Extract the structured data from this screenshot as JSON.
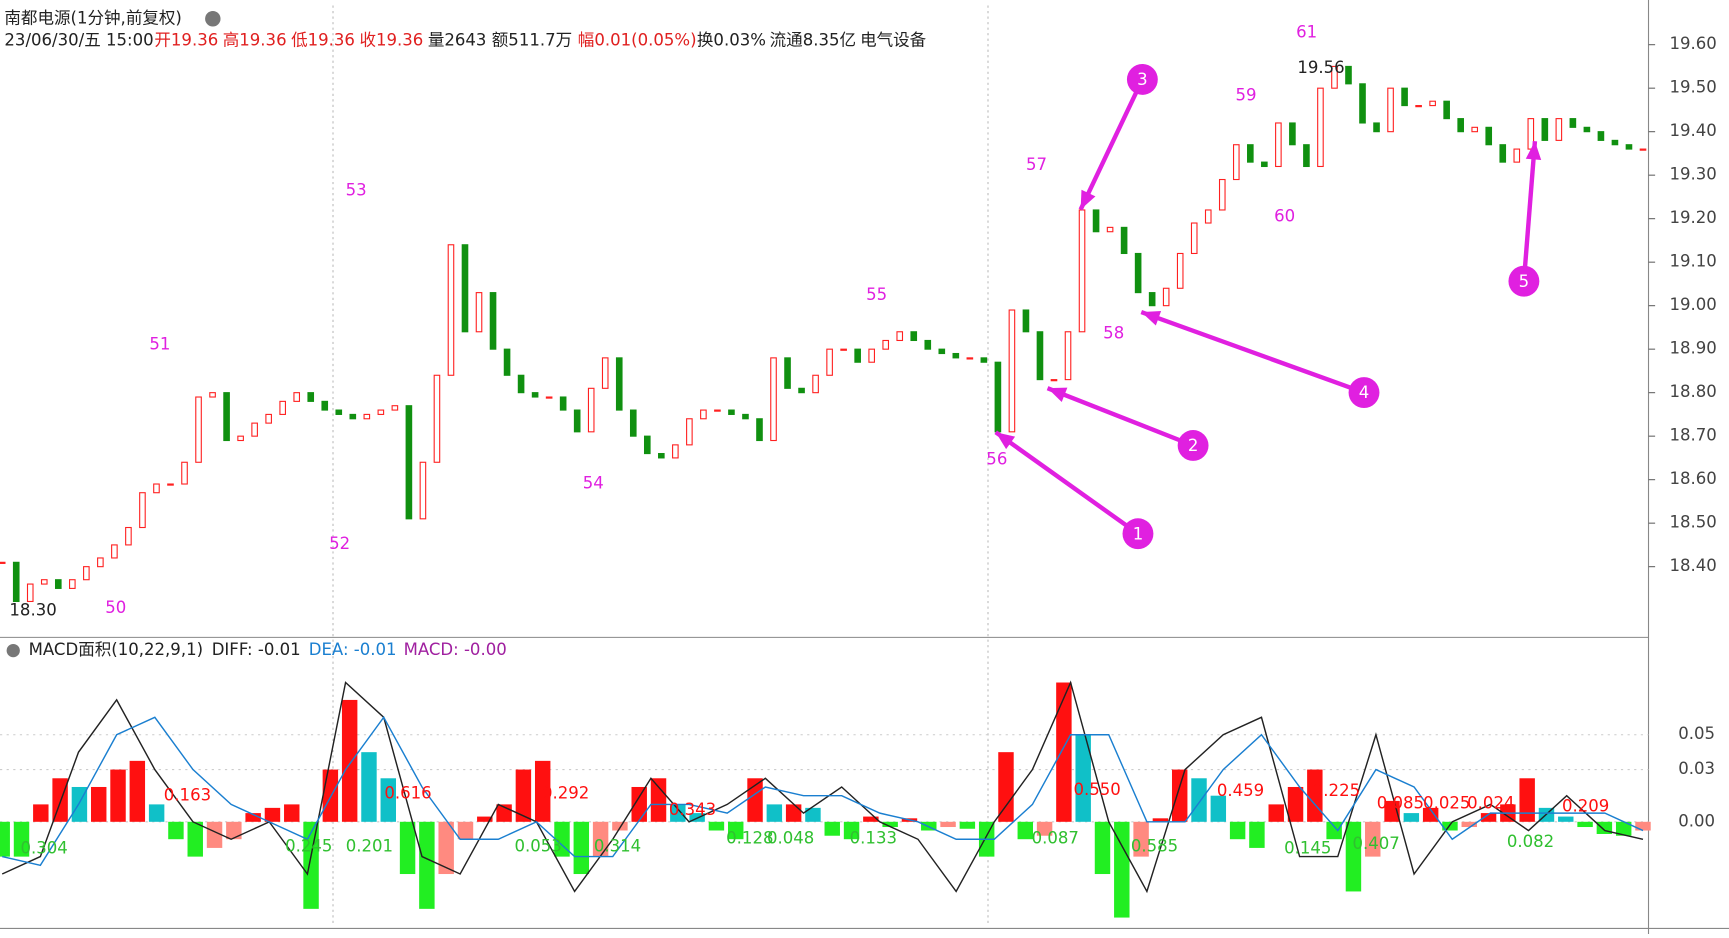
{
  "chart_data": [
    {
      "type": "candle",
      "title": "南都电源(1分钟,前复权)",
      "info": [
        "23/06/30/五 15:00",
        "开19.36",
        "高19.36",
        "低19.36",
        "收19.36",
        "量2643",
        "额511.7万",
        "幅0.01(0.05%)",
        "换0.03%",
        "流通8.35亿",
        "电气设备"
      ],
      "series": [
        {
          "name": "收",
          "up_color": "#ff2020",
          "down_color": "#109010",
          "values": [
            18.41,
            18.32,
            18.36,
            18.37,
            18.35,
            18.37,
            18.4,
            18.42,
            18.45,
            18.49,
            18.57,
            18.59,
            18.59,
            18.64,
            18.79,
            18.8,
            18.69,
            18.7,
            18.73,
            18.75,
            18.78,
            18.8,
            18.78,
            18.76,
            18.75,
            18.74,
            18.75,
            18.76,
            18.77,
            18.51,
            18.64,
            18.84,
            19.14,
            18.94,
            19.03,
            18.9,
            18.84,
            18.8,
            18.79,
            18.79,
            18.76,
            18.71,
            18.81,
            18.88,
            18.76,
            18.7,
            18.66,
            18.65,
            18.68,
            18.74,
            18.76,
            18.76,
            18.75,
            18.74,
            18.69,
            18.88,
            18.81,
            18.8,
            18.84,
            18.9,
            18.9,
            18.87,
            18.9,
            18.92,
            18.94,
            18.92,
            18.9,
            18.89,
            18.88,
            18.88,
            18.87,
            18.71,
            18.99,
            18.94,
            18.83,
            18.83,
            18.94,
            19.22,
            19.17,
            19.18,
            19.12,
            19.03,
            19.0,
            19.04,
            19.12,
            19.19,
            19.22,
            19.29,
            19.37,
            19.33,
            19.32,
            19.42,
            19.37,
            19.32,
            19.5,
            19.55,
            19.51,
            19.42,
            19.4,
            19.5,
            19.46,
            19.46,
            19.47,
            19.43,
            19.4,
            19.41,
            19.37,
            19.33,
            19.36,
            19.43,
            19.38,
            19.43,
            19.41,
            19.4,
            19.38,
            19.37,
            19.36,
            19.36
          ]
        }
      ],
      "ylim": [
        18.24,
        19.69
      ],
      "yticks": [
        {
          "value": 19.6,
          "label": "19.60"
        },
        {
          "value": 19.5,
          "label": "19.50"
        },
        {
          "value": 19.4,
          "label": "19.40"
        },
        {
          "value": 19.3,
          "label": "19.30"
        },
        {
          "value": 19.2,
          "label": "19.20"
        },
        {
          "value": 19.1,
          "label": "19.10"
        },
        {
          "value": 19.0,
          "label": "19.00"
        },
        {
          "value": 18.9,
          "label": "18.90"
        },
        {
          "value": 18.8,
          "label": "18.80"
        },
        {
          "value": 18.7,
          "label": "18.70"
        },
        {
          "value": 18.6,
          "label": "18.60"
        },
        {
          "value": 18.5,
          "label": "18.50"
        },
        {
          "value": 18.4,
          "label": "18.40"
        }
      ],
      "annotations": [
        "50",
        "51",
        "52",
        "53",
        "54",
        "55",
        "56",
        "57",
        "58",
        "59",
        "60",
        "61",
        "19.56",
        "18.30"
      ],
      "markers": [
        "1",
        "2",
        "3",
        "4",
        "5"
      ]
    },
    {
      "type": "macd",
      "title": "MACD面积(10,22,9,1)",
      "legend": [
        "DIFF: -0.01",
        "DEA: -0.01",
        "MACD: -0.00"
      ],
      "series": [
        {
          "name": "MACD",
          "values": [
            -0.02,
            -0.02,
            0.01,
            0.025,
            0.02,
            0.02,
            0.03,
            0.035,
            0.01,
            -0.01,
            -0.02,
            -0.015,
            -0.01,
            0.005,
            0.008,
            0.01,
            -0.05,
            0.03,
            0.07,
            0.04,
            0.025,
            -0.03,
            -0.05,
            -0.03,
            -0.01,
            0.003,
            0.01,
            0.03,
            0.035,
            -0.02,
            -0.03,
            -0.02,
            -0.005,
            0.02,
            0.025,
            0.01,
            0.005,
            -0.005,
            -0.01,
            0.025,
            0.01,
            0.01,
            0.008,
            -0.008,
            -0.01,
            0.003,
            -0.003,
            0.002,
            -0.005,
            -0.003,
            -0.004,
            -0.02,
            0.04,
            -0.01,
            -0.008,
            0.08,
            0.05,
            -0.03,
            -0.055,
            -0.02,
            0.002,
            0.03,
            0.025,
            0.015,
            -0.01,
            -0.015,
            0.01,
            0.02,
            0.03,
            -0.01,
            -0.04,
            -0.02,
            0.012,
            0.005,
            0.008,
            -0.005,
            -0.003,
            0.005,
            0.01,
            0.025,
            0.008,
            0.003,
            -0.003,
            -0.007,
            -0.008,
            -0.005
          ]
        },
        {
          "name": "DIFF",
          "color": "#222222",
          "values": [
            -0.03,
            -0.02,
            0.04,
            0.07,
            0.03,
            0.0,
            -0.01,
            0.0,
            -0.03,
            0.08,
            0.06,
            -0.02,
            -0.03,
            0.01,
            0.0,
            -0.04,
            -0.01,
            0.025,
            0.0,
            0.01,
            0.025,
            0.005,
            0.02,
            0.0,
            -0.01,
            -0.04,
            0.0,
            0.03,
            0.08,
            0.0,
            -0.04,
            0.03,
            0.05,
            0.06,
            -0.02,
            -0.02,
            0.05,
            -0.03,
            0.0,
            0.01,
            -0.005,
            0.015,
            -0.005,
            -0.01
          ]
        },
        {
          "name": "DEA",
          "color": "#1a7fd0",
          "values": [
            -0.02,
            -0.025,
            0.01,
            0.05,
            0.06,
            0.03,
            0.01,
            0.0,
            -0.01,
            0.03,
            0.06,
            0.02,
            -0.01,
            -0.01,
            0.0,
            -0.02,
            -0.02,
            0.01,
            0.01,
            0.005,
            0.02,
            0.015,
            0.015,
            0.005,
            0.0,
            -0.01,
            -0.01,
            0.01,
            0.05,
            0.05,
            0.0,
            0.0,
            0.03,
            0.05,
            0.02,
            -0.005,
            0.03,
            0.02,
            -0.01,
            0.005,
            0.005,
            0.005,
            0.005,
            -0.005
          ]
        }
      ],
      "ylim": [
        -0.06,
        0.092
      ],
      "yticks": [
        {
          "value": 0.05,
          "label": "0.05"
        },
        {
          "value": 0.03,
          "label": "0.03"
        },
        {
          "value": 0,
          "label": "0.00"
        }
      ],
      "area_labels_up": [
        "0.163",
        "0.616",
        "0.292",
        "0.343",
        "0.550",
        "0.459",
        "0.225",
        "0.085",
        "0.025",
        "0.024",
        "0.209"
      ],
      "area_labels_down": [
        "0.304",
        "0.201",
        "0.245",
        "0.053",
        "0.314",
        "0.128",
        "0.048",
        "0.133",
        "0.087",
        "0.585",
        "0.145",
        "0.407",
        "0.082"
      ]
    }
  ]
}
